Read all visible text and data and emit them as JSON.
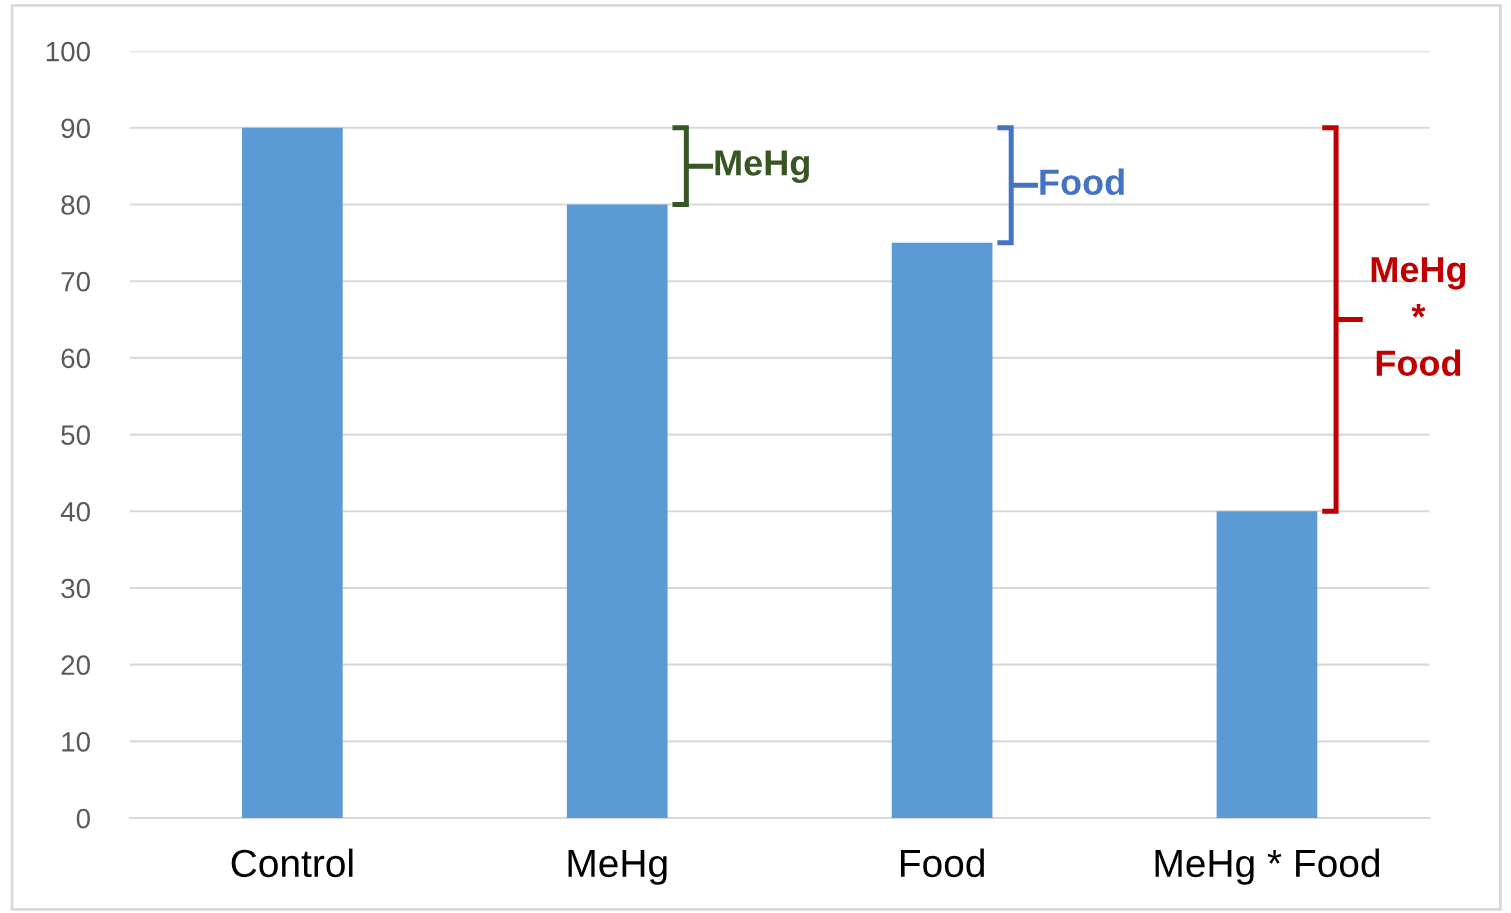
{
  "chart_data": {
    "type": "bar",
    "categories": [
      "Control",
      "MeHg",
      "Food",
      "MeHg * Food"
    ],
    "values": [
      90,
      80,
      75,
      40
    ],
    "color": "#5b9bd5",
    "ylim": [
      0,
      100
    ],
    "yticks": [
      0,
      10,
      20,
      30,
      40,
      50,
      60,
      70,
      80,
      90,
      100
    ],
    "grid": "y",
    "annotations": [
      "MeHg",
      "Food",
      "MeHg\n*\nFood"
    ]
  }
}
